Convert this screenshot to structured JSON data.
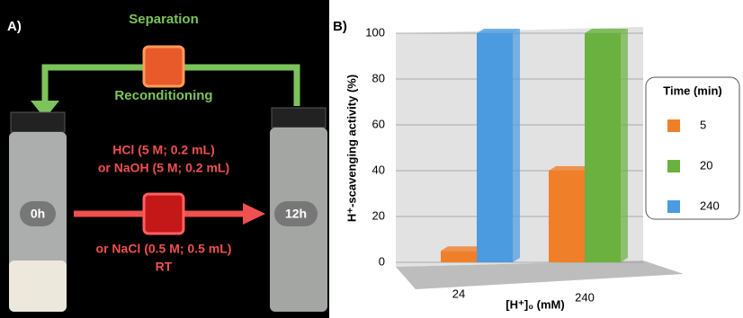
{
  "panel_a": {
    "label": "A)",
    "top_text": "Separation",
    "bottom_text": "Reconditioning",
    "conditions": [
      "HCl (5 M; 0.2 mL)",
      "or NaOH (5 M; 0.2 mL)",
      "or NaCl (0.5 M; 0.5 mL)",
      "RT"
    ],
    "start_time": "0h",
    "end_time": "12h"
  },
  "chart_data": {
    "type": "bar",
    "panel_label": "B)",
    "y_label": "H⁺-scavenging activity (%)",
    "x_label": "[H⁺]₀ (mM)",
    "categories": [
      "24",
      "240"
    ],
    "series": [
      {
        "name": "5",
        "color": "#f07f2a",
        "values": [
          5,
          40
        ]
      },
      {
        "name": "20",
        "color": "#6bb13f",
        "values": [
          null,
          100
        ]
      },
      {
        "name": "240",
        "color": "#4a9be0",
        "values": [
          100,
          null
        ]
      }
    ],
    "legend_title": "Time (min)",
    "ylim": [
      0,
      100
    ],
    "yticks": [
      0,
      20,
      40,
      60,
      80,
      100
    ],
    "grid": true
  }
}
